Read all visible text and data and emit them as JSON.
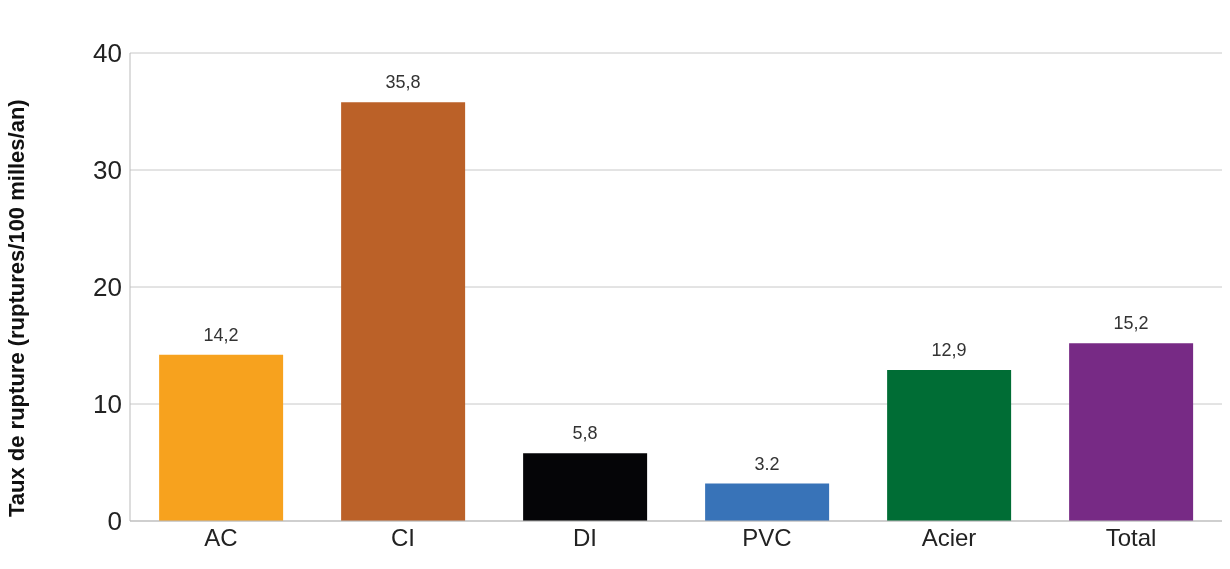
{
  "chart_data": {
    "type": "bar",
    "ylabel": "Taux de rupture (ruptures/100 milles/an)",
    "categories": [
      "AC",
      "CI",
      "DI",
      "PVC",
      "Acier",
      "Total"
    ],
    "values": [
      14.2,
      35.8,
      5.8,
      3.2,
      12.9,
      15.2
    ],
    "value_labels": [
      "14,2",
      "35,8",
      "5,8",
      "3.2",
      "12,9",
      "15,2"
    ],
    "colors": [
      "#f7a21e",
      "#bb6128",
      "#050507",
      "#3873b8",
      "#006d35",
      "#772a85"
    ],
    "ylim": [
      0,
      40
    ],
    "yticks": [
      0,
      10,
      20,
      30,
      40
    ],
    "grid": "y"
  }
}
